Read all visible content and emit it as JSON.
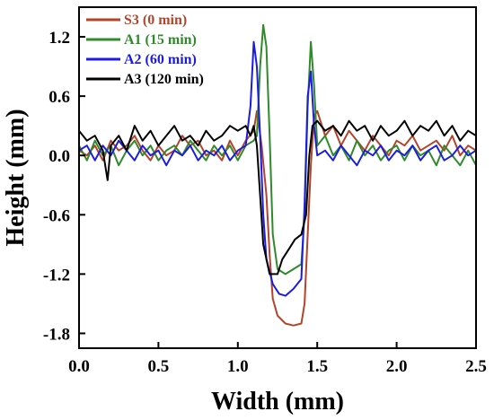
{
  "chart_data": {
    "type": "line",
    "xlabel": "Width (mm)",
    "ylabel": "Height (mm)",
    "xlim": [
      0.0,
      2.5
    ],
    "ylim": [
      -1.95,
      1.5
    ],
    "x_ticks": [
      "0.0",
      "0.5",
      "1.0",
      "1.5",
      "2.0",
      "2.5"
    ],
    "y_ticks": [
      "1.2",
      "0.6",
      "0.0",
      "-0.6",
      "-1.2",
      "-1.8"
    ],
    "grid": false,
    "legend_position": "top-left",
    "series": [
      {
        "name": "S3 (0 min)",
        "color": "#b5432a",
        "points": [
          [
            0.0,
            0.05
          ],
          [
            0.05,
            0.0
          ],
          [
            0.1,
            0.1
          ],
          [
            0.15,
            -0.05
          ],
          [
            0.2,
            0.15
          ],
          [
            0.25,
            0.05
          ],
          [
            0.3,
            0.1
          ],
          [
            0.35,
            0.2
          ],
          [
            0.4,
            0.05
          ],
          [
            0.45,
            -0.05
          ],
          [
            0.5,
            0.1
          ],
          [
            0.55,
            0.0
          ],
          [
            0.6,
            0.05
          ],
          [
            0.65,
            0.2
          ],
          [
            0.7,
            0.1
          ],
          [
            0.75,
            0.15
          ],
          [
            0.8,
            0.0
          ],
          [
            0.85,
            0.05
          ],
          [
            0.9,
            -0.05
          ],
          [
            0.95,
            0.15
          ],
          [
            1.0,
            0.0
          ],
          [
            1.05,
            0.15
          ],
          [
            1.1,
            0.25
          ],
          [
            1.12,
            0.45
          ],
          [
            1.15,
            0.1
          ],
          [
            1.18,
            -0.4
          ],
          [
            1.2,
            -1.0
          ],
          [
            1.22,
            -1.45
          ],
          [
            1.25,
            -1.62
          ],
          [
            1.3,
            -1.7
          ],
          [
            1.35,
            -1.72
          ],
          [
            1.4,
            -1.7
          ],
          [
            1.42,
            -1.5
          ],
          [
            1.44,
            -0.8
          ],
          [
            1.46,
            -0.1
          ],
          [
            1.48,
            0.4
          ],
          [
            1.5,
            0.45
          ],
          [
            1.55,
            0.2
          ],
          [
            1.6,
            0.3
          ],
          [
            1.65,
            0.1
          ],
          [
            1.7,
            0.25
          ],
          [
            1.75,
            0.15
          ],
          [
            1.8,
            0.05
          ],
          [
            1.85,
            0.2
          ],
          [
            1.9,
            0.1
          ],
          [
            1.95,
            0.0
          ],
          [
            2.0,
            0.15
          ],
          [
            2.05,
            0.1
          ],
          [
            2.1,
            0.2
          ],
          [
            2.15,
            0.05
          ],
          [
            2.2,
            0.1
          ],
          [
            2.25,
            0.15
          ],
          [
            2.3,
            0.05
          ],
          [
            2.35,
            0.2
          ],
          [
            2.4,
            0.0
          ],
          [
            2.45,
            0.1
          ],
          [
            2.5,
            0.05
          ]
        ]
      },
      {
        "name": "A1 (15 min)",
        "color": "#2f8a2a",
        "points": [
          [
            0.0,
            0.1
          ],
          [
            0.05,
            -0.05
          ],
          [
            0.1,
            0.15
          ],
          [
            0.15,
            0.0
          ],
          [
            0.2,
            0.1
          ],
          [
            0.25,
            -0.1
          ],
          [
            0.3,
            0.05
          ],
          [
            0.35,
            0.15
          ],
          [
            0.4,
            0.0
          ],
          [
            0.45,
            0.1
          ],
          [
            0.5,
            -0.05
          ],
          [
            0.55,
            0.05
          ],
          [
            0.6,
            0.1
          ],
          [
            0.65,
            0.0
          ],
          [
            0.7,
            0.15
          ],
          [
            0.75,
            0.05
          ],
          [
            0.8,
            -0.05
          ],
          [
            0.85,
            0.1
          ],
          [
            0.9,
            0.0
          ],
          [
            0.95,
            0.1
          ],
          [
            1.0,
            -0.05
          ],
          [
            1.05,
            0.1
          ],
          [
            1.1,
            0.15
          ],
          [
            1.12,
            0.2
          ],
          [
            1.14,
            0.9
          ],
          [
            1.16,
            1.32
          ],
          [
            1.18,
            1.1
          ],
          [
            1.2,
            0.2
          ],
          [
            1.22,
            -0.8
          ],
          [
            1.25,
            -1.15
          ],
          [
            1.3,
            -1.2
          ],
          [
            1.35,
            -1.15
          ],
          [
            1.4,
            -1.1
          ],
          [
            1.42,
            -0.6
          ],
          [
            1.44,
            0.5
          ],
          [
            1.46,
            1.15
          ],
          [
            1.48,
            0.7
          ],
          [
            1.5,
            0.1
          ],
          [
            1.55,
            0.2
          ],
          [
            1.6,
            0.0
          ],
          [
            1.65,
            0.1
          ],
          [
            1.7,
            -0.05
          ],
          [
            1.75,
            0.15
          ],
          [
            1.8,
            0.0
          ],
          [
            1.85,
            0.1
          ],
          [
            1.9,
            -0.05
          ],
          [
            1.95,
            0.05
          ],
          [
            2.0,
            0.1
          ],
          [
            2.05,
            -0.05
          ],
          [
            2.1,
            0.1
          ],
          [
            2.15,
            0.0
          ],
          [
            2.2,
            0.05
          ],
          [
            2.25,
            -0.1
          ],
          [
            2.3,
            0.1
          ],
          [
            2.35,
            0.0
          ],
          [
            2.4,
            -0.1
          ],
          [
            2.45,
            0.05
          ],
          [
            2.5,
            -0.1
          ]
        ]
      },
      {
        "name": "A2 (60 min)",
        "color": "#1c1ce0",
        "points": [
          [
            0.0,
            0.05
          ],
          [
            0.05,
            0.1
          ],
          [
            0.1,
            -0.05
          ],
          [
            0.15,
            0.1
          ],
          [
            0.2,
            0.0
          ],
          [
            0.25,
            0.15
          ],
          [
            0.3,
            0.05
          ],
          [
            0.35,
            -0.05
          ],
          [
            0.4,
            0.1
          ],
          [
            0.45,
            0.0
          ],
          [
            0.5,
            0.05
          ],
          [
            0.55,
            -0.1
          ],
          [
            0.6,
            0.05
          ],
          [
            0.65,
            0.0
          ],
          [
            0.7,
            0.1
          ],
          [
            0.75,
            -0.05
          ],
          [
            0.8,
            0.05
          ],
          [
            0.85,
            0.0
          ],
          [
            0.9,
            0.1
          ],
          [
            0.95,
            -0.05
          ],
          [
            1.0,
            0.05
          ],
          [
            1.05,
            0.1
          ],
          [
            1.08,
            0.5
          ],
          [
            1.1,
            1.15
          ],
          [
            1.12,
            0.9
          ],
          [
            1.14,
            0.2
          ],
          [
            1.16,
            -0.6
          ],
          [
            1.18,
            -1.05
          ],
          [
            1.22,
            -1.3
          ],
          [
            1.26,
            -1.4
          ],
          [
            1.3,
            -1.42
          ],
          [
            1.35,
            -1.35
          ],
          [
            1.4,
            -1.25
          ],
          [
            1.42,
            -0.5
          ],
          [
            1.44,
            0.6
          ],
          [
            1.46,
            0.85
          ],
          [
            1.48,
            0.3
          ],
          [
            1.5,
            0.0
          ],
          [
            1.55,
            0.05
          ],
          [
            1.6,
            -0.05
          ],
          [
            1.65,
            0.1
          ],
          [
            1.7,
            0.0
          ],
          [
            1.75,
            -0.1
          ],
          [
            1.8,
            0.05
          ],
          [
            1.85,
            0.0
          ],
          [
            1.9,
            0.1
          ],
          [
            1.95,
            -0.05
          ],
          [
            2.0,
            0.05
          ],
          [
            2.05,
            0.0
          ],
          [
            2.1,
            0.1
          ],
          [
            2.15,
            -0.05
          ],
          [
            2.2,
            0.05
          ],
          [
            2.25,
            0.1
          ],
          [
            2.3,
            -0.05
          ],
          [
            2.35,
            0.0
          ],
          [
            2.4,
            0.1
          ],
          [
            2.45,
            0.0
          ],
          [
            2.5,
            0.05
          ]
        ]
      },
      {
        "name": "A3 (120 min)",
        "color": "#000000",
        "points": [
          [
            0.0,
            0.25
          ],
          [
            0.05,
            0.15
          ],
          [
            0.1,
            0.2
          ],
          [
            0.15,
            0.05
          ],
          [
            0.18,
            -0.25
          ],
          [
            0.2,
            0.1
          ],
          [
            0.25,
            0.2
          ],
          [
            0.3,
            0.05
          ],
          [
            0.35,
            0.3
          ],
          [
            0.4,
            0.15
          ],
          [
            0.45,
            0.25
          ],
          [
            0.5,
            0.1
          ],
          [
            0.55,
            0.2
          ],
          [
            0.6,
            0.3
          ],
          [
            0.65,
            0.15
          ],
          [
            0.7,
            0.2
          ],
          [
            0.75,
            0.1
          ],
          [
            0.8,
            0.25
          ],
          [
            0.85,
            0.15
          ],
          [
            0.9,
            0.2
          ],
          [
            0.95,
            0.3
          ],
          [
            1.0,
            0.25
          ],
          [
            1.05,
            0.3
          ],
          [
            1.08,
            0.2
          ],
          [
            1.1,
            0.3
          ],
          [
            1.12,
            0.1
          ],
          [
            1.14,
            -0.4
          ],
          [
            1.16,
            -0.9
          ],
          [
            1.2,
            -1.2
          ],
          [
            1.25,
            -1.2
          ],
          [
            1.28,
            -1.05
          ],
          [
            1.32,
            -0.95
          ],
          [
            1.36,
            -0.85
          ],
          [
            1.4,
            -0.8
          ],
          [
            1.43,
            -0.6
          ],
          [
            1.45,
            0.0
          ],
          [
            1.47,
            0.3
          ],
          [
            1.5,
            0.35
          ],
          [
            1.55,
            0.25
          ],
          [
            1.6,
            0.3
          ],
          [
            1.65,
            0.2
          ],
          [
            1.7,
            0.35
          ],
          [
            1.75,
            0.25
          ],
          [
            1.8,
            0.3
          ],
          [
            1.85,
            0.15
          ],
          [
            1.9,
            0.3
          ],
          [
            1.95,
            0.2
          ],
          [
            2.0,
            0.25
          ],
          [
            2.05,
            0.35
          ],
          [
            2.1,
            0.2
          ],
          [
            2.15,
            0.3
          ],
          [
            2.2,
            0.25
          ],
          [
            2.25,
            0.35
          ],
          [
            2.3,
            0.2
          ],
          [
            2.35,
            0.3
          ],
          [
            2.4,
            0.15
          ],
          [
            2.45,
            0.25
          ],
          [
            2.5,
            0.2
          ]
        ]
      }
    ]
  }
}
